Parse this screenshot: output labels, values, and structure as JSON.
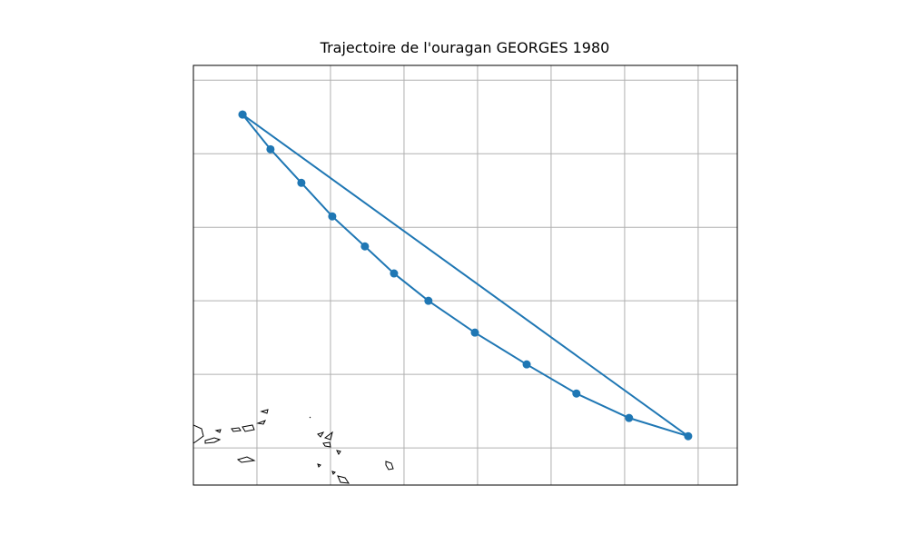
{
  "chart_data": {
    "type": "line",
    "title": "Trajectoire de l'ouragan GEORGES 1980",
    "x": [
      -65.49,
      -64.54,
      -63.49,
      -62.44,
      -61.33,
      -60.34,
      -59.17,
      -57.59,
      -55.83,
      -54.14,
      -52.35,
      -50.34,
      -65.49
    ],
    "y": [
      26.33,
      25.15,
      24.01,
      22.87,
      21.85,
      20.93,
      20.0,
      18.92,
      17.84,
      16.85,
      16.02,
      15.4,
      26.33
    ],
    "color": "#1f77b4",
    "xlim": [
      -67.16,
      -48.67
    ],
    "ylim": [
      13.74,
      28.0
    ],
    "xticks": [
      -65,
      -62.5,
      -60,
      -57.5,
      -55,
      -52.5,
      -50
    ],
    "yticks": [
      15,
      17.5,
      20,
      22.5,
      25,
      27.5
    ],
    "grid": true
  }
}
